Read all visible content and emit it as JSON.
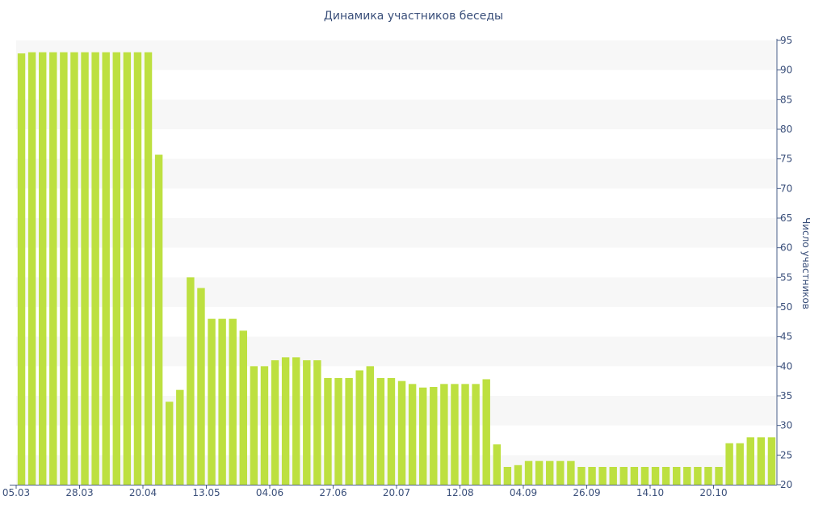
{
  "chart_data": {
    "type": "bar",
    "title": "Динамика участников беседы",
    "ylabel": "Число участников",
    "xlabel": "",
    "ylim": [
      20,
      95
    ],
    "y_ticks": [
      20,
      25,
      30,
      35,
      40,
      45,
      50,
      55,
      60,
      65,
      70,
      75,
      80,
      85,
      90,
      95
    ],
    "y_axis_side": "right",
    "grid": "alternating horizontal bands",
    "legend": "none",
    "bar_color": "#bde040",
    "x_tick_labels": [
      "05.03",
      "28.03",
      "20.04",
      "13.05",
      "04.06",
      "27.06",
      "20.07",
      "12.08",
      "04.09",
      "26.09",
      "14.10",
      "20.10"
    ],
    "x_tick_bar_index": [
      0,
      6,
      12,
      18,
      24,
      30,
      36,
      42,
      48,
      54,
      60,
      66
    ],
    "values": [
      92.8,
      93,
      93,
      93,
      93,
      93,
      93,
      93,
      93,
      93,
      93,
      93,
      93,
      75.7,
      34,
      36,
      55,
      53.2,
      48,
      48,
      48,
      46,
      40,
      40,
      41,
      41.5,
      41.5,
      41,
      41,
      38,
      38,
      38,
      39.3,
      40,
      38,
      38,
      37.5,
      37,
      36.4,
      36.5,
      37,
      37,
      37,
      37,
      37.8,
      26.8,
      23,
      23.3,
      24,
      24,
      24,
      24,
      24,
      23,
      23,
      23,
      23,
      23,
      23,
      23,
      23,
      23,
      23,
      23,
      23,
      23,
      23,
      27,
      27,
      28,
      28,
      28
    ]
  }
}
